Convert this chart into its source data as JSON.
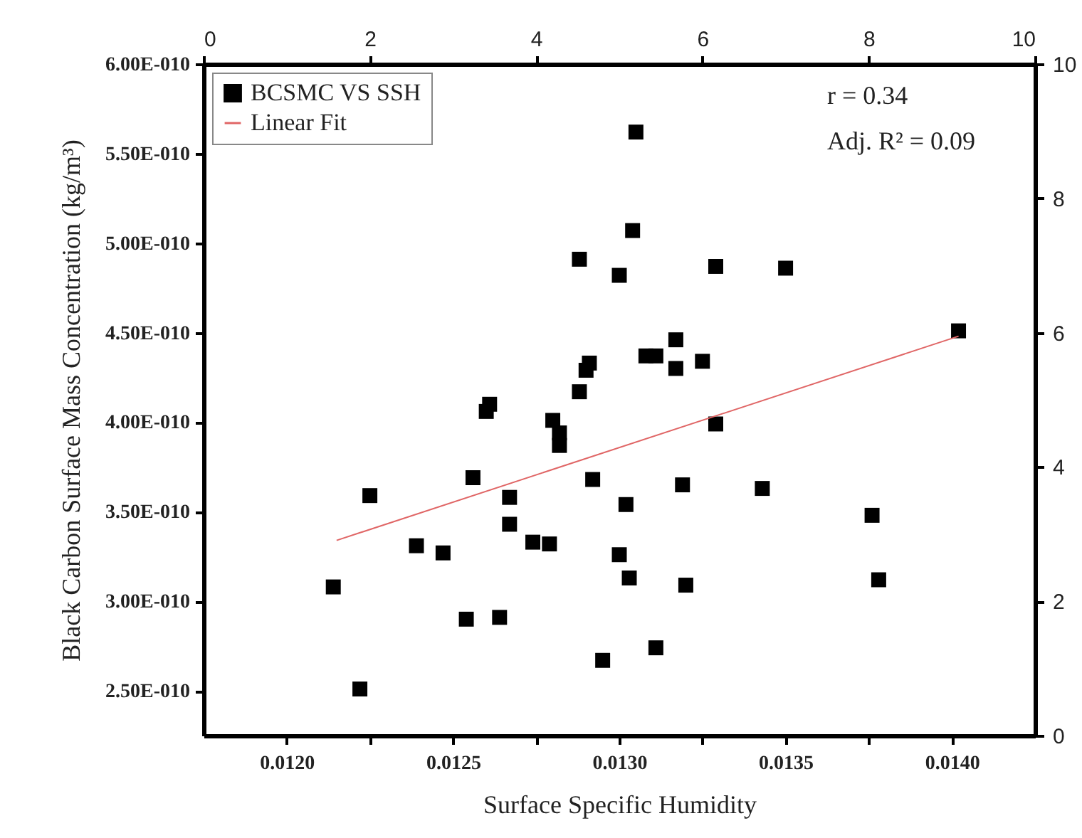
{
  "chart_data": {
    "type": "scatter",
    "xlabel": "Surface Specific Humidity",
    "ylabel": "Black Carbon Surface Mass Concentration (kg/m³)",
    "xlim": [
      0.01175,
      0.01425
    ],
    "xticks": [
      {
        "value": 0.012,
        "label": "0.0120"
      },
      {
        "value": 0.01225,
        "label": null
      },
      {
        "value": 0.0125,
        "label": "0.0125"
      },
      {
        "value": 0.01275,
        "label": null
      },
      {
        "value": 0.013,
        "label": "0.0130"
      },
      {
        "value": 0.01325,
        "label": null
      },
      {
        "value": 0.0135,
        "label": "0.0135"
      },
      {
        "value": 0.01375,
        "label": null
      },
      {
        "value": 0.014,
        "label": "0.0140"
      }
    ],
    "ylim": [
      2.25e-10,
      6e-10
    ],
    "yticks": [
      {
        "value": 2.5e-10,
        "label": "2.50E-010"
      },
      {
        "value": 3e-10,
        "label": "3.00E-010"
      },
      {
        "value": 3.5e-10,
        "label": "3.50E-010"
      },
      {
        "value": 4e-10,
        "label": "4.00E-010"
      },
      {
        "value": 4.5e-10,
        "label": "4.50E-010"
      },
      {
        "value": 5e-10,
        "label": "5.00E-010"
      },
      {
        "value": 5.5e-10,
        "label": "5.50E-010"
      },
      {
        "value": 6e-10,
        "label": "6.00E-010"
      }
    ],
    "x2lim": [
      0,
      10
    ],
    "x2ticks": [
      0,
      2,
      4,
      6,
      8,
      10
    ],
    "y2lim": [
      0,
      10
    ],
    "y2ticks": [
      0,
      2,
      4,
      6,
      8,
      10
    ],
    "grid": false,
    "legend": "top left",
    "annotations": [
      "r = 0.34",
      "Adj. R² = 0.09"
    ],
    "series": [
      {
        "name": "BCSMC VS SSH",
        "type": "scatter",
        "marker": "square",
        "color": "#000000",
        "x": [
          0.01305,
          0.01304,
          0.01288,
          0.013,
          0.01329,
          0.0135,
          0.01402,
          0.01308,
          0.01311,
          0.01317,
          0.01317,
          0.01325,
          0.01291,
          0.0129,
          0.01288,
          0.01261,
          0.0126,
          0.0128,
          0.01282,
          0.01282,
          0.01256,
          0.01292,
          0.01225,
          0.01267,
          0.01302,
          0.01267,
          0.01239,
          0.01247,
          0.01274,
          0.01279,
          0.013,
          0.01214,
          0.01303,
          0.01254,
          0.01264,
          0.01295,
          0.01222,
          0.01329,
          0.01319,
          0.01343,
          0.01376,
          0.0132,
          0.01378,
          0.01311
        ],
        "values": [
          5.62e-10,
          5.07e-10,
          4.91e-10,
          4.82e-10,
          4.87e-10,
          4.86e-10,
          4.51e-10,
          4.37e-10,
          4.37e-10,
          4.46e-10,
          4.3e-10,
          4.34e-10,
          4.33e-10,
          4.29e-10,
          4.17e-10,
          4.1e-10,
          4.06e-10,
          4.01e-10,
          3.94e-10,
          3.87e-10,
          3.69e-10,
          3.68e-10,
          3.59e-10,
          3.58e-10,
          3.54e-10,
          3.43e-10,
          3.31e-10,
          3.27e-10,
          3.33e-10,
          3.32e-10,
          3.26e-10,
          3.08e-10,
          3.13e-10,
          2.9e-10,
          2.91e-10,
          2.67e-10,
          2.51e-10,
          3.99e-10,
          3.65e-10,
          3.63e-10,
          3.48e-10,
          3.09e-10,
          3.12e-10,
          2.74e-10
        ]
      },
      {
        "name": "Linear Fit",
        "type": "line",
        "color": "#e06666",
        "x": [
          0.01215,
          0.01402
        ],
        "values": [
          3.34e-10,
          4.48e-10
        ]
      }
    ]
  }
}
